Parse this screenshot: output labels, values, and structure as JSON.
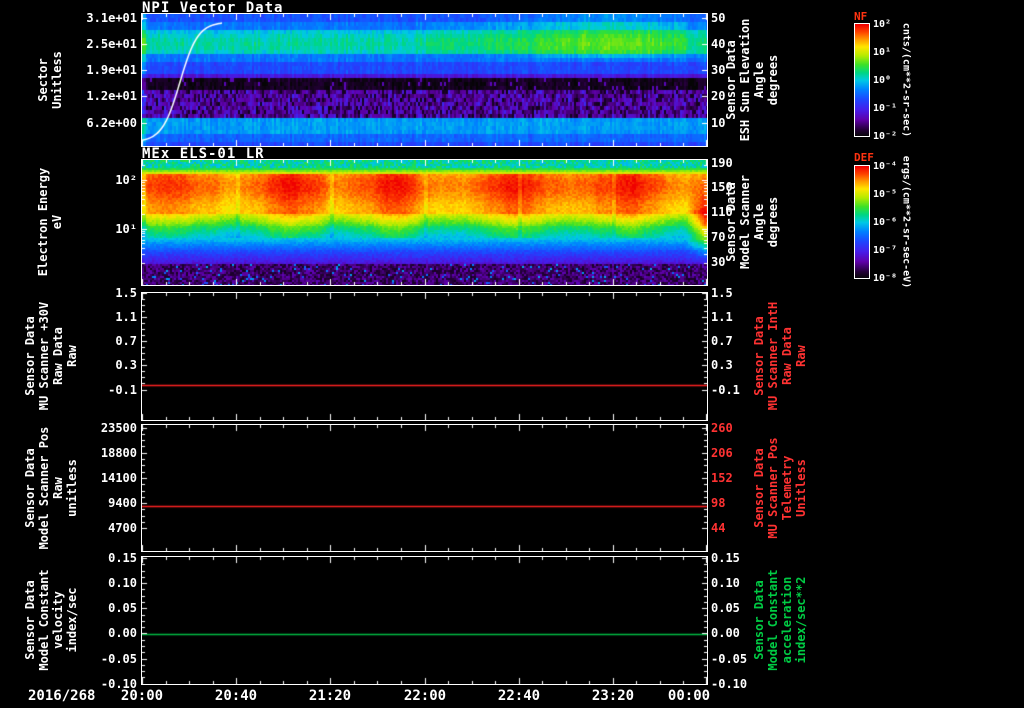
{
  "page": {
    "background": "#000000",
    "axis_color": "#ffffff",
    "red_accent": "#ff3232",
    "green_accent": "#00cc44"
  },
  "xaxis": {
    "date_label": "2016/268",
    "ticks": [
      "20:00",
      "20:40",
      "21:20",
      "22:00",
      "22:40",
      "23:20",
      "00:00"
    ]
  },
  "chart_data": [
    {
      "type": "heatmap",
      "title": "NPI Vector Data",
      "ylabel": "Sector\nUnitless",
      "yticks": [
        "3.1e+01",
        "2.5e+01",
        "1.9e+01",
        "1.2e+01",
        "6.2e+00"
      ],
      "ylim": [
        0,
        32
      ],
      "right_axis": {
        "label": "Sensor Data\nESH Sun Elevation\nAngle\ndegrees",
        "ticks": [
          "50",
          "40",
          "30",
          "20",
          "10"
        ],
        "color": "#ffffff"
      },
      "colorbar": {
        "name": "NF",
        "name_color": "#ff3311",
        "units": "cnts/(cm**2-sr-sec)",
        "ticks": [
          "10²",
          "10¹",
          "10⁰",
          "10⁻¹",
          "10⁻²"
        ]
      },
      "content_summary": "Blue/cyan sector-time spectrogram over 20:00-00:00: bright cyan band near sectors 22-27, dark data gap near sector 16, noisy purple band sectors 8-14, cyan band sectors 4-7; white sun-elevation curve rises steeply from ~0 to ~50 degrees at the start of the interval; upper sectors brighten toward 23:20."
    },
    {
      "type": "heatmap",
      "title": "MEx ELS-01 LR",
      "ylabel": "Electron Energy\neV",
      "yticks": [
        "10²",
        "10¹"
      ],
      "right_axis": {
        "label": "Sensor Data\nModel Scanner\nAngle\ndegrees",
        "ticks": [
          "190",
          "150",
          "110",
          "70",
          "30"
        ],
        "color": "#ffffff"
      },
      "colorbar": {
        "name": "DEF",
        "name_color": "#ff3311",
        "units": "ergs/(cm**2-sr-sec-eV)",
        "ticks": [
          "10⁻⁴",
          "10⁻⁵",
          "10⁻⁶",
          "10⁻⁷",
          "10⁻⁸"
        ]
      },
      "content_summary": "Electron energy-time spectrogram: intense red-orange flux band roughly 20-80 eV across the whole interval, yellow-green flanks, cyan-blue below ~8 eV, speckled dark background at lowest energies, red enhancement at far right near 00:00."
    },
    {
      "type": "line",
      "ylabel": "Sensor Data\nMU Scanner +30V\nRaw Data\nRaw",
      "yticks": [
        "1.5",
        "1.1",
        "0.7",
        "0.3",
        "-0.1"
      ],
      "right_axis": {
        "label": "Sensor Data\nMU Scanner IntH\nRaw Data\nRaw",
        "ticks": [
          "1.5",
          "1.1",
          "0.7",
          "0.3",
          "-0.1"
        ],
        "color": "#ff3232"
      },
      "series": [
        {
          "name": "MU Scanner +30V Raw",
          "color": "#ff2222",
          "shape": "constant",
          "value": -0.03
        }
      ]
    },
    {
      "type": "line",
      "ylabel": "Sensor Data\nModel Scanner Pos\nRaw\nunitless",
      "yticks": [
        "23500",
        "18800",
        "14100",
        "9400",
        "4700"
      ],
      "right_axis": {
        "label": "Sensor Data\nMU Scanner Pos\nTelemetry\nUnitless",
        "ticks": [
          "260",
          "206",
          "152",
          "98",
          "44"
        ],
        "color": "#ff3232"
      },
      "series": [
        {
          "name": "Model Scanner Pos Raw",
          "color": "#ff2222",
          "shape": "constant",
          "value": 8900
        }
      ]
    },
    {
      "type": "line",
      "ylabel": "Sensor Data\nModel Constant\nvelocity\nindex/sec",
      "yticks": [
        "0.15",
        "0.10",
        "0.05",
        "0.00",
        "-0.05",
        "-0.10"
      ],
      "right_axis": {
        "label": "Sensor Data\nModel Constant\nacceleration\nindex/sec**2",
        "ticks": [
          "0.15",
          "0.10",
          "0.05",
          "0.00",
          "-0.05",
          "-0.10"
        ],
        "color": "#00cc44"
      },
      "series": [
        {
          "name": "Model Constant velocity",
          "color": "#00bb44",
          "shape": "constant",
          "value": 0.0
        }
      ]
    }
  ]
}
